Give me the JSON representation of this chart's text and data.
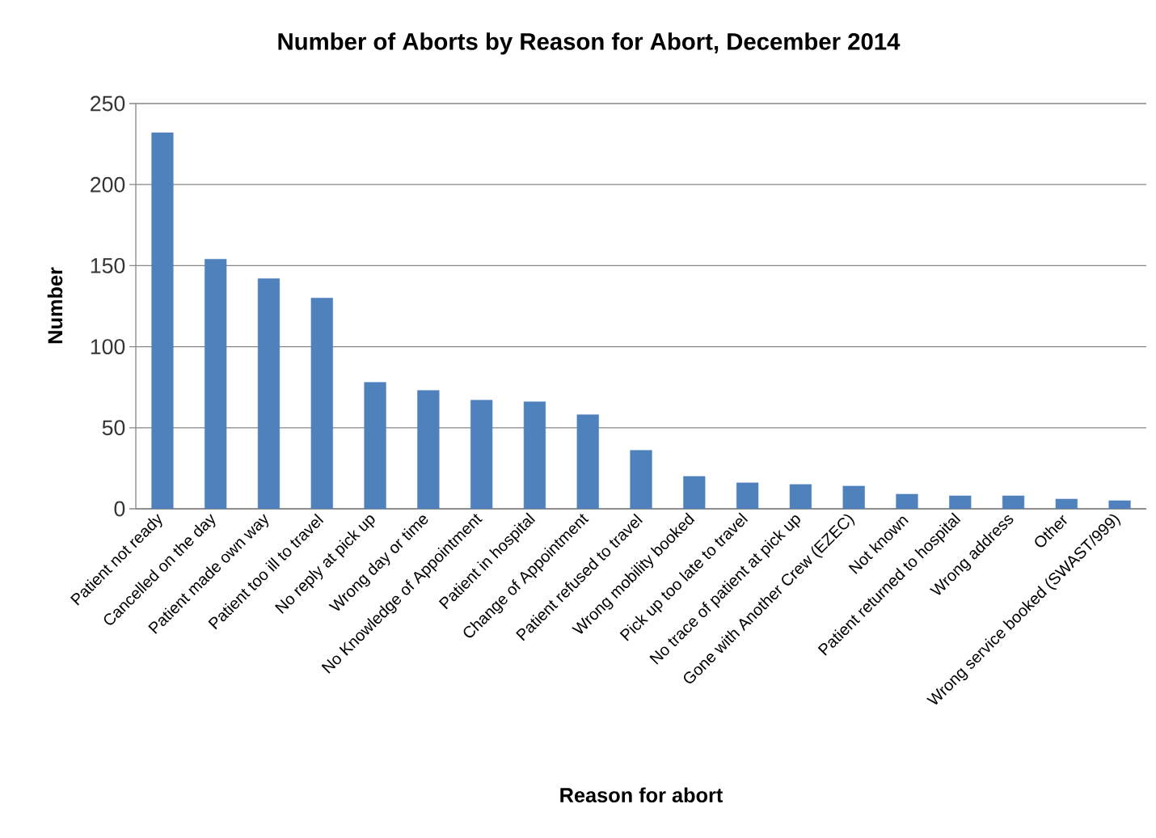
{
  "chart_data": {
    "type": "bar",
    "title": "Number of Aborts by Reason for Abort, December 2014",
    "xlabel": "Reason for abort",
    "ylabel": "Number",
    "categories": [
      "Patient not ready",
      "Cancelled on the day",
      "Patient made own way",
      "Patient too ill to travel",
      "No reply at pick up",
      "Wrong day or time",
      "No Knowledge of Appointment",
      "Patient in hospital",
      "Change of Appointment",
      "Patient refused to travel",
      "Wrong mobility booked",
      "Pick up too late to travel",
      "No trace of patient at pick up",
      "Gone with Another Crew (EZEC)",
      "Not known",
      "Patient returned to hospital",
      "Wrong address",
      "Other",
      "Wrong service booked (SWAST/999)"
    ],
    "values": [
      232,
      154,
      142,
      130,
      78,
      73,
      67,
      66,
      58,
      36,
      20,
      16,
      15,
      14,
      9,
      8,
      8,
      6,
      5
    ],
    "color": "#4f81bd",
    "ylim": [
      0,
      250
    ],
    "yticks": [
      0,
      50,
      100,
      150,
      200,
      250
    ],
    "grid": "y"
  }
}
